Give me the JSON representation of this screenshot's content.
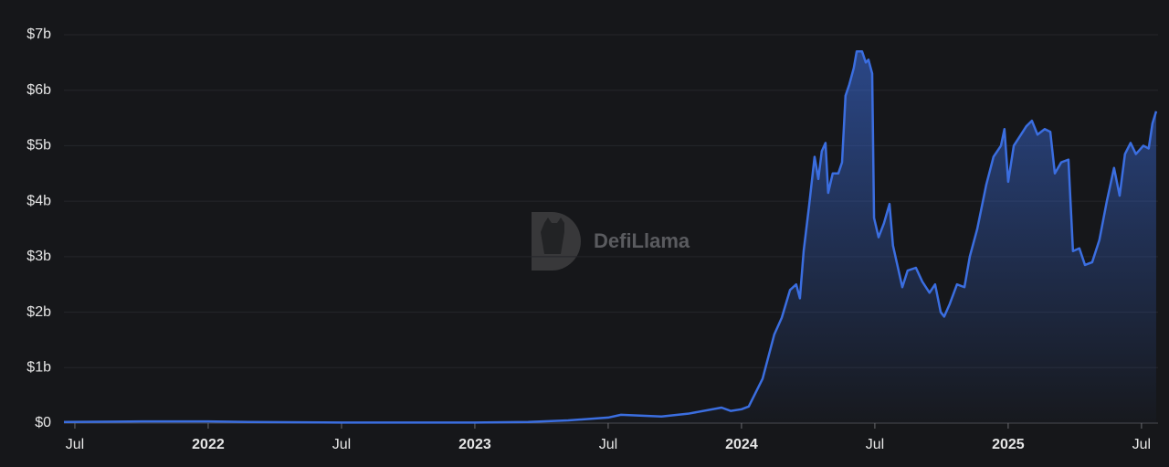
{
  "chart_data": {
    "type": "area",
    "watermark": "DefiLlama",
    "x": [
      2021.459,
      2021.75,
      2022.0,
      2022.15,
      2022.5,
      2023.0,
      2023.2,
      2023.35,
      2023.5,
      2023.548,
      2023.7,
      2023.8,
      2023.925,
      2023.96,
      2024.0,
      2024.027,
      2024.079,
      2024.123,
      2024.151,
      2024.182,
      2024.205,
      2024.219,
      2024.233,
      2024.253,
      2024.274,
      2024.288,
      2024.301,
      2024.315,
      2024.325,
      2024.342,
      2024.363,
      2024.377,
      2024.39,
      2024.404,
      2024.421,
      2024.432,
      2024.452,
      2024.466,
      2024.476,
      2024.49,
      2024.497,
      2024.514,
      2024.534,
      2024.555,
      2024.568,
      2024.603,
      2024.623,
      2024.654,
      2024.678,
      2024.705,
      2024.726,
      2024.747,
      2024.76,
      2024.781,
      2024.808,
      2024.836,
      2024.856,
      2024.884,
      2024.918,
      2024.945,
      2024.973,
      2024.986,
      2025.0,
      2025.021,
      2025.048,
      2025.068,
      2025.089,
      2025.11,
      2025.137,
      2025.158,
      2025.175,
      2025.199,
      2025.226,
      2025.243,
      2025.267,
      2025.288,
      2025.315,
      2025.342,
      2025.37,
      2025.397,
      2025.418,
      2025.438,
      2025.459,
      2025.479,
      2025.507,
      2025.527,
      2025.541,
      2025.555
    ],
    "series": [
      {
        "color": "#3b6ee0",
        "values": [
          0.02,
          0.03,
          0.03,
          0.02,
          0.01,
          0.01,
          0.02,
          0.05,
          0.1,
          0.15,
          0.12,
          0.17,
          0.28,
          0.22,
          0.25,
          0.3,
          0.8,
          1.6,
          1.9,
          2.4,
          2.5,
          2.25,
          3.1,
          3.9,
          4.8,
          4.4,
          4.9,
          5.05,
          4.15,
          4.5,
          4.5,
          4.7,
          5.9,
          6.1,
          6.4,
          6.7,
          6.7,
          6.5,
          6.55,
          6.3,
          3.7,
          3.35,
          3.6,
          3.95,
          3.2,
          2.45,
          2.75,
          2.8,
          2.55,
          2.35,
          2.5,
          2.0,
          1.92,
          2.15,
          2.5,
          2.45,
          3.0,
          3.5,
          4.3,
          4.8,
          5.0,
          5.3,
          4.35,
          5.0,
          5.2,
          5.35,
          5.45,
          5.2,
          5.3,
          5.25,
          4.5,
          4.7,
          4.75,
          3.1,
          3.15,
          2.85,
          2.9,
          3.3,
          4.0,
          4.6,
          4.1,
          4.85,
          5.05,
          4.85,
          5.0,
          4.95,
          5.4,
          5.62
        ]
      }
    ],
    "xlim": [
      2021.459,
      2025.562
    ],
    "xticks": [
      {
        "value": 2021.5,
        "label": "Jul"
      },
      {
        "value": 2022,
        "label": "2022"
      },
      {
        "value": 2022.5,
        "label": "Jul"
      },
      {
        "value": 2023,
        "label": "2023"
      },
      {
        "value": 2023.5,
        "label": "Jul"
      },
      {
        "value": 2024,
        "label": "2024"
      },
      {
        "value": 2024.5,
        "label": "Jul"
      },
      {
        "value": 2025,
        "label": "2025"
      },
      {
        "value": 2025.5,
        "label": "Jul"
      }
    ],
    "ylim": [
      0,
      7
    ],
    "yticks": [
      {
        "value": 0,
        "label": "$0"
      },
      {
        "value": 1,
        "label": "$1b"
      },
      {
        "value": 2,
        "label": "$2b"
      },
      {
        "value": 3,
        "label": "$3b"
      },
      {
        "value": 4,
        "label": "$4b"
      },
      {
        "value": 5,
        "label": "$5b"
      },
      {
        "value": 6,
        "label": "$6b"
      },
      {
        "value": 7,
        "label": "$7b"
      }
    ],
    "grid": true
  }
}
